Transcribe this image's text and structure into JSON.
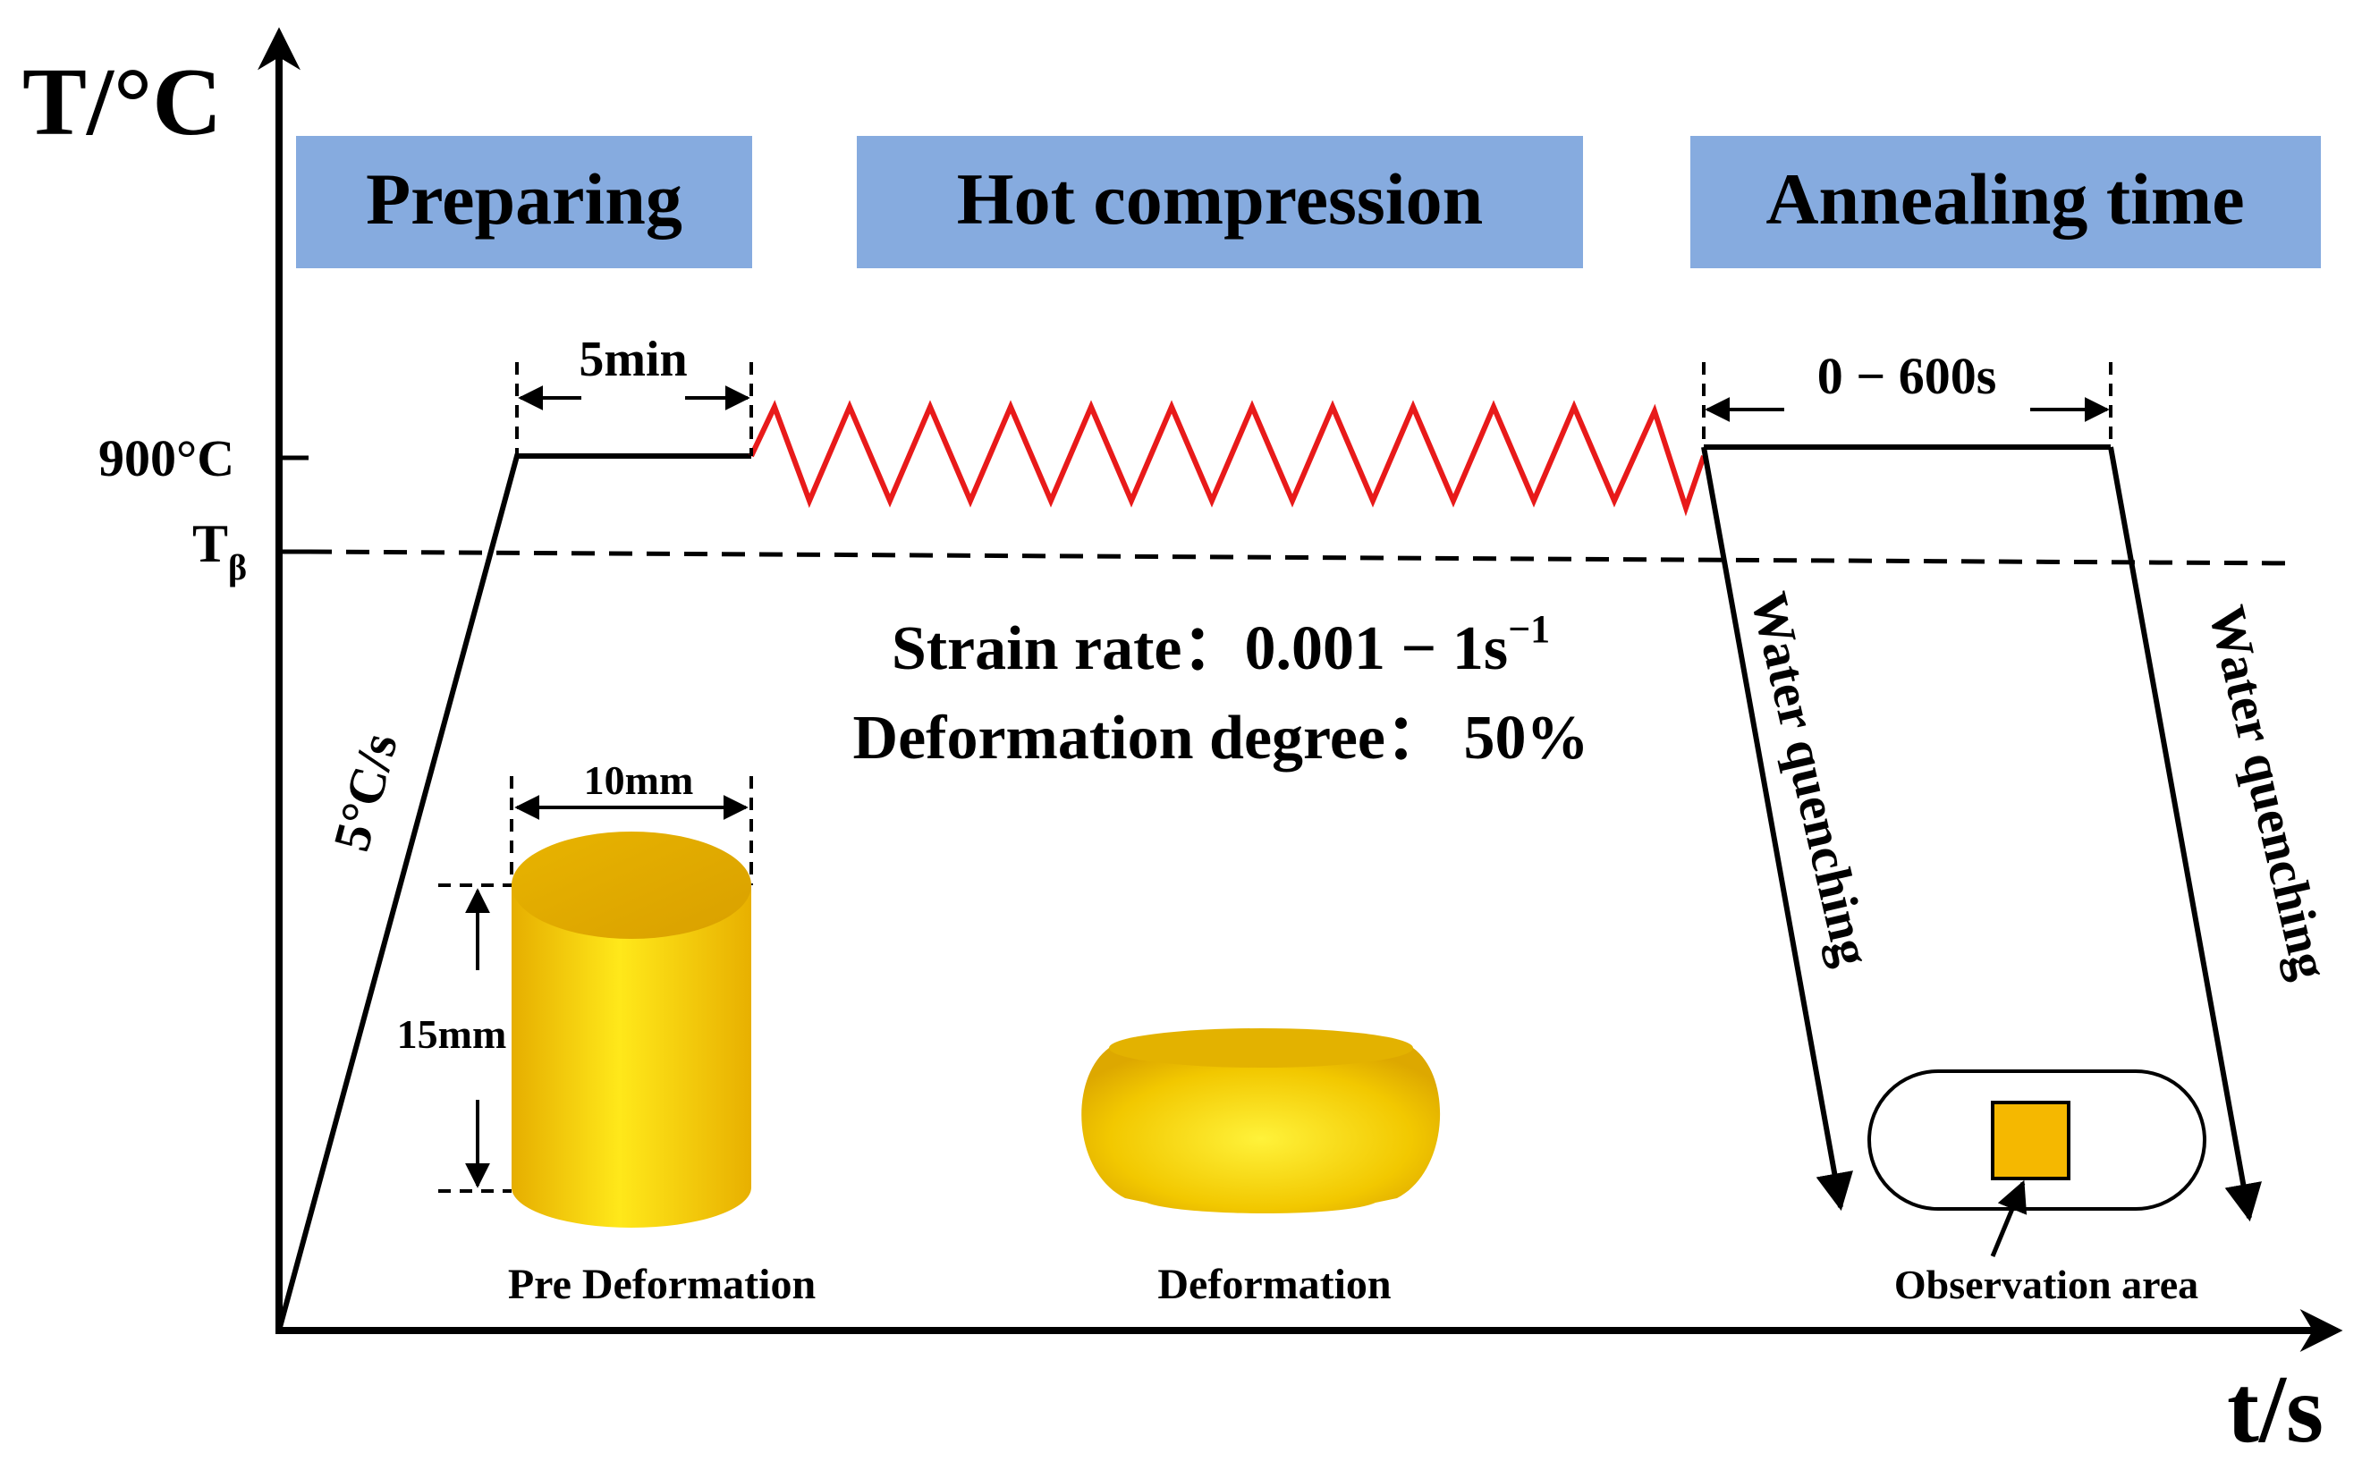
{
  "axes": {
    "y_label": "T/°C",
    "x_label": "t/s"
  },
  "stages": [
    {
      "label": "Preparing"
    },
    {
      "label": "Hot compression"
    },
    {
      "label": "Annealing time"
    }
  ],
  "temps": {
    "hold": "900°C",
    "transus_main": "T",
    "transus_sub": "β"
  },
  "annotations": {
    "heating_rate": "5°C/s",
    "hold_duration": "5min",
    "anneal_duration": "0 − 600s",
    "strain_rate_label": "Strain rate：",
    "strain_rate_value": "0.001 − 1s",
    "strain_rate_exp": "−1",
    "deformation_degree": "Deformation degree：  50%",
    "quench_1": "Water quenching",
    "quench_2": "Water quenching"
  },
  "specimens": {
    "diameter": "10mm",
    "height": "15mm",
    "pre_label": "Pre Deformation",
    "deformed_label": "Deformation",
    "observation_label": "Observation area"
  },
  "colors": {
    "stage_box": "#86ABDF",
    "zigzag": "#E81A1A",
    "specimen": "#F5C800",
    "observation_fill": "#F5B800"
  }
}
